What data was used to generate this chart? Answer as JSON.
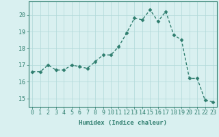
{
  "x": [
    0,
    1,
    2,
    3,
    4,
    5,
    6,
    7,
    8,
    9,
    10,
    11,
    12,
    13,
    14,
    15,
    16,
    17,
    18,
    19,
    20,
    21,
    22,
    23
  ],
  "y": [
    16.6,
    16.6,
    17.0,
    16.7,
    16.7,
    17.0,
    16.9,
    16.8,
    17.2,
    17.6,
    17.6,
    18.1,
    18.9,
    19.8,
    19.7,
    20.3,
    19.6,
    20.2,
    18.8,
    18.5,
    16.2,
    16.2,
    14.9,
    14.8
  ],
  "xlabel": "Humidex (Indice chaleur)",
  "ylabel": "",
  "xlim": [
    -0.5,
    23.5
  ],
  "ylim": [
    14.5,
    20.8
  ],
  "yticks": [
    15,
    16,
    17,
    18,
    19,
    20
  ],
  "xticks": [
    0,
    1,
    2,
    3,
    4,
    5,
    6,
    7,
    8,
    9,
    10,
    11,
    12,
    13,
    14,
    15,
    16,
    17,
    18,
    19,
    20,
    21,
    22,
    23
  ],
  "line_color": "#2e7d6e",
  "bg_color": "#d9f0f0",
  "grid_color": "#b0d8d8",
  "marker": "D",
  "markersize": 2.5,
  "linewidth": 1.0,
  "title_fontsize": 6.5,
  "label_fontsize": 6.5,
  "tick_fontsize": 6
}
